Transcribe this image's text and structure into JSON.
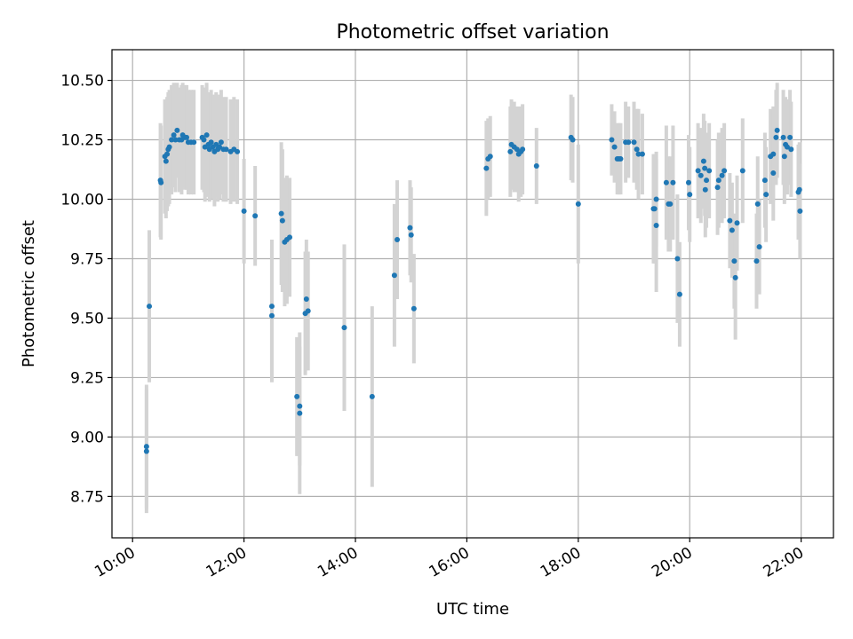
{
  "chart_data": {
    "type": "scatter",
    "title": "Photometric offset variation",
    "xlabel": "UTC time",
    "ylabel": "Photometric offset",
    "x_unit": "hours UTC",
    "xlim": [
      9.63,
      22.58
    ],
    "ylim": [
      8.576,
      10.629
    ],
    "x_ticks": [
      {
        "value": 10,
        "label": "10:00"
      },
      {
        "value": 12,
        "label": "12:00"
      },
      {
        "value": 14,
        "label": "14:00"
      },
      {
        "value": 16,
        "label": "16:00"
      },
      {
        "value": 18,
        "label": "18:00"
      },
      {
        "value": 20,
        "label": "20:00"
      },
      {
        "value": 22,
        "label": "22:00"
      }
    ],
    "y_ticks": [
      {
        "value": 8.75,
        "label": "8.75"
      },
      {
        "value": 9.0,
        "label": "9.00"
      },
      {
        "value": 9.25,
        "label": "9.25"
      },
      {
        "value": 9.5,
        "label": "9.50"
      },
      {
        "value": 9.75,
        "label": "9.75"
      },
      {
        "value": 10.0,
        "label": "10.00"
      },
      {
        "value": 10.25,
        "label": "10.25"
      },
      {
        "value": 10.5,
        "label": "10.50"
      }
    ],
    "grid": true,
    "colors": {
      "point": "#1f77b4",
      "errorbar": "#d3d3d3",
      "grid": "#b0b0b0"
    },
    "series": [
      {
        "points": [
          [
            10.25,
            8.96,
            0.26
          ],
          [
            10.25,
            8.94,
            0.26
          ],
          [
            10.3,
            9.55,
            0.32
          ],
          [
            10.5,
            10.08,
            0.24
          ],
          [
            10.51,
            10.07,
            0.24
          ],
          [
            10.58,
            10.18,
            0.24
          ],
          [
            10.6,
            10.16,
            0.24
          ],
          [
            10.62,
            10.19,
            0.24
          ],
          [
            10.64,
            10.21,
            0.24
          ],
          [
            10.66,
            10.22,
            0.24
          ],
          [
            10.7,
            10.25,
            0.23
          ],
          [
            10.74,
            10.27,
            0.22
          ],
          [
            10.77,
            10.25,
            0.22
          ],
          [
            10.8,
            10.29,
            0.2
          ],
          [
            10.84,
            10.25,
            0.22
          ],
          [
            10.88,
            10.25,
            0.23
          ],
          [
            10.9,
            10.27,
            0.22
          ],
          [
            10.94,
            10.26,
            0.22
          ],
          [
            10.97,
            10.26,
            0.22
          ],
          [
            11.0,
            10.24,
            0.22
          ],
          [
            11.05,
            10.24,
            0.22
          ],
          [
            11.1,
            10.24,
            0.22
          ],
          [
            11.25,
            10.26,
            0.22
          ],
          [
            11.28,
            10.25,
            0.22
          ],
          [
            11.3,
            10.22,
            0.23
          ],
          [
            11.33,
            10.27,
            0.22
          ],
          [
            11.36,
            10.23,
            0.22
          ],
          [
            11.38,
            10.21,
            0.22
          ],
          [
            11.41,
            10.24,
            0.22
          ],
          [
            11.44,
            10.22,
            0.22
          ],
          [
            11.47,
            10.2,
            0.23
          ],
          [
            11.5,
            10.23,
            0.22
          ],
          [
            11.53,
            10.21,
            0.22
          ],
          [
            11.56,
            10.22,
            0.22
          ],
          [
            11.59,
            10.24,
            0.22
          ],
          [
            11.63,
            10.21,
            0.22
          ],
          [
            11.68,
            10.21,
            0.22
          ],
          [
            11.76,
            10.2,
            0.22
          ],
          [
            11.82,
            10.21,
            0.22
          ],
          [
            11.88,
            10.2,
            0.22
          ],
          [
            12.0,
            9.95,
            0.22
          ],
          [
            12.2,
            9.93,
            0.21
          ],
          [
            12.5,
            9.55,
            0.28
          ],
          [
            12.5,
            9.51,
            0.28
          ],
          [
            12.67,
            9.94,
            0.3
          ],
          [
            12.69,
            9.91,
            0.3
          ],
          [
            12.73,
            9.82,
            0.27
          ],
          [
            12.77,
            9.83,
            0.27
          ],
          [
            12.82,
            9.84,
            0.25
          ],
          [
            12.95,
            9.17,
            0.25
          ],
          [
            13.0,
            9.13,
            0.25
          ],
          [
            13.0,
            9.1,
            0.34
          ],
          [
            13.1,
            9.52,
            0.26
          ],
          [
            13.12,
            9.58,
            0.25
          ],
          [
            13.15,
            9.53,
            0.25
          ],
          [
            13.8,
            9.46,
            0.35
          ],
          [
            14.3,
            9.17,
            0.38
          ],
          [
            14.7,
            9.68,
            0.3
          ],
          [
            14.75,
            9.83,
            0.25
          ],
          [
            14.98,
            9.88,
            0.2
          ],
          [
            15.0,
            9.85,
            0.2
          ],
          [
            15.05,
            9.54,
            0.23
          ],
          [
            16.35,
            10.13,
            0.2
          ],
          [
            16.38,
            10.17,
            0.17
          ],
          [
            16.42,
            10.18,
            0.17
          ],
          [
            16.78,
            10.2,
            0.19
          ],
          [
            16.8,
            10.23,
            0.19
          ],
          [
            16.85,
            10.22,
            0.19
          ],
          [
            16.9,
            10.21,
            0.18
          ],
          [
            16.93,
            10.19,
            0.2
          ],
          [
            16.97,
            10.2,
            0.19
          ],
          [
            17.0,
            10.21,
            0.19
          ],
          [
            17.25,
            10.14,
            0.16
          ],
          [
            17.87,
            10.26,
            0.18
          ],
          [
            17.9,
            10.25,
            0.18
          ],
          [
            18.0,
            9.98,
            0.25
          ],
          [
            18.6,
            10.25,
            0.15
          ],
          [
            18.65,
            10.22,
            0.15
          ],
          [
            18.7,
            10.17,
            0.15
          ],
          [
            18.73,
            10.17,
            0.15
          ],
          [
            18.76,
            10.17,
            0.15
          ],
          [
            18.85,
            10.24,
            0.17
          ],
          [
            18.9,
            10.24,
            0.15
          ],
          [
            19.0,
            10.24,
            0.17
          ],
          [
            19.05,
            10.21,
            0.17
          ],
          [
            19.08,
            10.19,
            0.19
          ],
          [
            19.15,
            10.19,
            0.17
          ],
          [
            19.35,
            9.96,
            0.23
          ],
          [
            19.37,
            9.96,
            0.23
          ],
          [
            19.4,
            10.0,
            0.2
          ],
          [
            19.4,
            9.89,
            0.28
          ],
          [
            19.58,
            10.07,
            0.24
          ],
          [
            19.62,
            9.98,
            0.2
          ],
          [
            19.65,
            9.98,
            0.2
          ],
          [
            19.7,
            10.07,
            0.24
          ],
          [
            19.78,
            9.75,
            0.27
          ],
          [
            19.82,
            9.6,
            0.22
          ],
          [
            19.98,
            10.07,
            0.2
          ],
          [
            20.0,
            10.02,
            0.2
          ],
          [
            20.15,
            10.12,
            0.2
          ],
          [
            20.2,
            10.1,
            0.2
          ],
          [
            20.25,
            10.16,
            0.2
          ],
          [
            20.27,
            10.13,
            0.2
          ],
          [
            20.28,
            10.04,
            0.2
          ],
          [
            20.3,
            10.08,
            0.2
          ],
          [
            20.35,
            10.12,
            0.2
          ],
          [
            20.5,
            10.05,
            0.2
          ],
          [
            20.52,
            10.08,
            0.2
          ],
          [
            20.58,
            10.1,
            0.2
          ],
          [
            20.62,
            10.12,
            0.2
          ],
          [
            20.72,
            9.91,
            0.2
          ],
          [
            20.76,
            9.87,
            0.2
          ],
          [
            20.8,
            9.74,
            0.2
          ],
          [
            20.82,
            9.67,
            0.26
          ],
          [
            20.85,
            9.9,
            0.2
          ],
          [
            20.95,
            10.12,
            0.22
          ],
          [
            21.2,
            9.74,
            0.2
          ],
          [
            21.22,
            9.98,
            0.2
          ],
          [
            21.25,
            9.8,
            0.2
          ],
          [
            21.35,
            10.08,
            0.2
          ],
          [
            21.37,
            10.02,
            0.2
          ],
          [
            21.45,
            10.18,
            0.2
          ],
          [
            21.5,
            10.19,
            0.2
          ],
          [
            21.5,
            10.11,
            0.2
          ],
          [
            21.55,
            10.26,
            0.2
          ],
          [
            21.57,
            10.29,
            0.2
          ],
          [
            21.68,
            10.26,
            0.2
          ],
          [
            21.7,
            10.18,
            0.2
          ],
          [
            21.72,
            10.23,
            0.2
          ],
          [
            21.75,
            10.22,
            0.2
          ],
          [
            21.8,
            10.26,
            0.2
          ],
          [
            21.82,
            10.21,
            0.2
          ],
          [
            21.95,
            10.03,
            0.2
          ],
          [
            21.97,
            10.04,
            0.2
          ],
          [
            21.98,
            9.95,
            0.2
          ]
        ]
      }
    ]
  }
}
